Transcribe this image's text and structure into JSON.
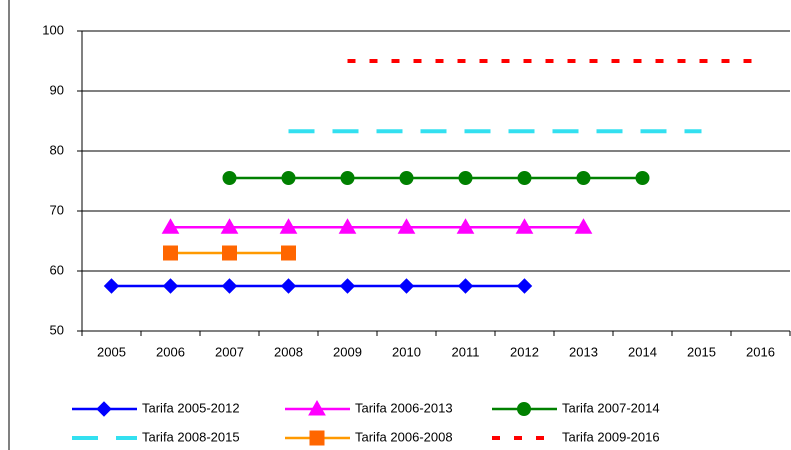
{
  "chart_data": {
    "type": "line",
    "categories": [
      "2005",
      "2006",
      "2007",
      "2008",
      "2009",
      "2010",
      "2011",
      "2012",
      "2013",
      "2014",
      "2015",
      "2016"
    ],
    "ylim": [
      50,
      100
    ],
    "yticks": [
      50,
      60,
      70,
      80,
      90,
      100
    ],
    "grid": true,
    "legend": "bottom",
    "series": [
      {
        "name": "Tarifa 2005-2012",
        "color": "#0000ff",
        "marker": "diamond",
        "values": [
          57.5,
          57.5,
          57.5,
          57.5,
          57.5,
          57.5,
          57.5,
          57.5,
          null,
          null,
          null,
          null
        ]
      },
      {
        "name": "Tarifa 2006-2013",
        "color": "#ff00ff",
        "marker": "triangle",
        "values": [
          null,
          67.3,
          67.3,
          67.3,
          67.3,
          67.3,
          67.3,
          67.3,
          67.3,
          null,
          null,
          null
        ]
      },
      {
        "name": "Tarifa 2007-2014",
        "color": "#008000",
        "marker": "circle",
        "values": [
          null,
          null,
          75.5,
          75.5,
          75.5,
          75.5,
          75.5,
          75.5,
          75.5,
          75.5,
          null,
          null
        ]
      },
      {
        "name": "Tarifa 2008-2015",
        "color": "#33e0f0",
        "dash": "long",
        "values": [
          null,
          null,
          null,
          83.3,
          83.3,
          83.3,
          83.3,
          83.3,
          83.3,
          83.3,
          83.3,
          null
        ]
      },
      {
        "name": "Tarifa 2006-2008",
        "color": "#ff9900",
        "marker": "square",
        "marker_color": "#ff6600",
        "values": [
          null,
          63,
          63,
          63,
          null,
          null,
          null,
          null,
          null,
          null,
          null,
          null
        ]
      },
      {
        "name": "Tarifa 2009-2016",
        "color": "#ff0000",
        "dash": "dot",
        "values": [
          null,
          null,
          null,
          null,
          95,
          95,
          95,
          95,
          95,
          95,
          95,
          95
        ]
      }
    ]
  }
}
